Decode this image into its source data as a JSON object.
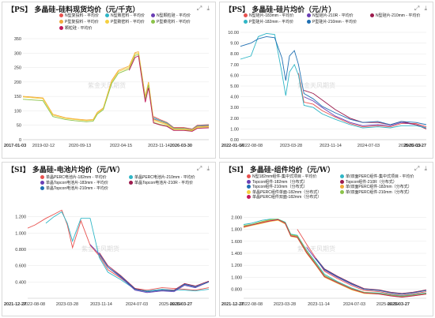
{
  "panels": [
    {
      "title": "【PS】 多晶硅-硅料现货均价（元/千克）",
      "watermark": "紫金天风期货",
      "chart_data": {
        "type": "line",
        "ylim": [
          0,
          350
        ],
        "yticks": [
          0,
          50,
          100,
          150,
          200,
          250,
          300,
          350
        ],
        "xlim": [
          "2017-01-03",
          "2026-03-30"
        ],
        "xticklabels": [
          "2017-01-03",
          "2019-02-12",
          "2020-09-13",
          "2022-04-15",
          "2023-11-14",
          "2026-03-30"
        ],
        "x": [
          "2017-01-03",
          "2018-01-01",
          "2018-07-01",
          "2019-02-12",
          "2019-08-01",
          "2020-03-01",
          "2020-07-01",
          "2020-09-13",
          "2021-01-01",
          "2021-06-01",
          "2021-10-01",
          "2022-04-15",
          "2022-08-01",
          "2022-10-01",
          "2023-02-01",
          "2023-04-01",
          "2023-07-01",
          "2023-11-14",
          "2024-03-01",
          "2024-07-01",
          "2025-01-01",
          "2025-06-01",
          "2025-09-01",
          "2026-03-30"
        ],
        "series": [
          {
            "name": "N型复投料 - 平均价",
            "color": "#e8524f",
            "values": [
              null,
              null,
              null,
              null,
              null,
              null,
              null,
              null,
              null,
              null,
              null,
              null,
              null,
              null,
              null,
              null,
              80,
              68,
              60,
              42,
              42,
              37,
              50,
              52
            ]
          },
          {
            "name": "N型致密料 - 平均价",
            "color": "#2fb6c6",
            "values": [
              null,
              null,
              null,
              null,
              null,
              null,
              null,
              null,
              null,
              null,
              null,
              null,
              null,
              null,
              null,
              null,
              76,
              65,
              58,
              40,
              40,
              35,
              48,
              50
            ]
          },
          {
            "name": "N型颗粒硅 - 平均价",
            "color": "#6a3fb5",
            "values": [
              null,
              null,
              null,
              null,
              null,
              null,
              null,
              null,
              null,
              null,
              null,
              null,
              null,
              null,
              null,
              null,
              72,
              62,
              55,
              38,
              38,
              33,
              46,
              48
            ]
          },
          {
            "name": "P型复投料 - 平均价",
            "color": "#f2a93b",
            "values": [
              150,
              145,
              88,
              76,
              72,
              68,
              70,
              95,
              110,
              205,
              240,
              255,
              302,
              305,
              150,
              200,
              70,
              62,
              55,
              38,
              38,
              34,
              45,
              47
            ]
          },
          {
            "name": "P型致密料 - 平均价",
            "color": "#f5d040",
            "values": [
              148,
              142,
              85,
              74,
              70,
              66,
              68,
              92,
              108,
              200,
              236,
              250,
              298,
              300,
              145,
              195,
              66,
              58,
              52,
              36,
              36,
              32,
              43,
              45
            ]
          },
          {
            "name": "P型菜花料 - 平均价",
            "color": "#8bc34a",
            "values": [
              140,
              135,
              80,
              70,
              66,
              62,
              64,
              88,
              104,
              195,
              230,
              245,
              292,
              295,
              140,
              190,
              60,
              52,
              48,
              33,
              33,
              30,
              40,
              42
            ]
          },
          {
            "name": "颗粒硅 - 平均价",
            "color": "#c2185b",
            "values": [
              null,
              null,
              null,
              null,
              null,
              null,
              null,
              null,
              null,
              null,
              null,
              240,
              285,
              290,
              130,
              180,
              58,
              50,
              46,
              32,
              32,
              29,
              39,
              41
            ]
          }
        ]
      }
    },
    {
      "title": "【PS】 多晶硅-硅片均价（元/片）",
      "watermark": "紫金天风期货",
      "chart_data": {
        "type": "line",
        "ylim": [
          0,
          10
        ],
        "yticks": [
          0,
          1,
          2,
          3,
          4,
          5,
          6,
          7,
          8,
          9,
          10
        ],
        "yticklabels": [
          "0.00",
          "1.00",
          "2.00",
          "3.00",
          "4.00",
          "5.00",
          "6.00",
          "7.00",
          "8.00",
          "9.00",
          "10.00"
        ],
        "xticklabels": [
          "2022-01-04",
          "2022-08-08",
          "2023-03-28",
          "2023-11-14",
          "2024-07-03",
          "2025-02-19",
          "2026-03-27"
        ],
        "x": [
          "2022-01-04",
          "2022-04-01",
          "2022-06-01",
          "2022-08-08",
          "2022-10-15",
          "2022-12-15",
          "2023-01-15",
          "2023-02-15",
          "2023-03-28",
          "2023-05-01",
          "2023-06-15",
          "2023-09-01",
          "2023-11-14",
          "2024-03-01",
          "2024-07-03",
          "2024-10-15",
          "2025-02-19",
          "2025-06-01",
          "2025-09-01",
          "2026-01-01",
          "2026-03-27"
        ],
        "series": [
          {
            "name": "N型硅片-183mm - 平均价",
            "color": "#e8524f",
            "values": [
              null,
              null,
              null,
              null,
              null,
              null,
              null,
              null,
              null,
              6.2,
              3.5,
              3.3,
              2.7,
              2.1,
              1.5,
              1.2,
              1.3,
              1.2,
              1.5,
              1.5,
              1.2
            ]
          },
          {
            "name": "N型硅片-210R - 平均价",
            "color": "#6a3fb5",
            "values": [
              null,
              null,
              null,
              null,
              null,
              null,
              null,
              null,
              null,
              null,
              4.0,
              3.6,
              3.0,
              2.2,
              1.6,
              1.3,
              1.4,
              1.3,
              1.6,
              1.4,
              1.1
            ]
          },
          {
            "name": "N型硅片-210mm - 平均价",
            "color": "#9c1b4d",
            "values": [
              null,
              null,
              null,
              null,
              null,
              null,
              null,
              null,
              null,
              null,
              4.6,
              4.3,
              3.7,
              2.8,
              2.0,
              1.6,
              1.6,
              1.4,
              1.7,
              1.4,
              1.0
            ]
          },
          {
            "name": "P型硅片-182mm - 平均价",
            "color": "#2fb6c6",
            "values": [
              7.5,
              7.8,
              9.6,
              9.9,
              9.8,
              6.2,
              4.1,
              6.3,
              7.0,
              6.0,
              3.2,
              3.0,
              2.4,
              1.9,
              1.4,
              1.1,
              1.2,
              1.1,
              1.3,
              1.3,
              1.1
            ]
          },
          {
            "name": "P型硅片-210mm - 平均价",
            "color": "#1f6fb2",
            "values": [
              8.7,
              9.0,
              9.4,
              9.6,
              9.5,
              7.6,
              5.5,
              7.8,
              8.3,
              7.0,
              4.3,
              3.8,
              3.1,
              2.5,
              1.9,
              1.6,
              1.7,
              1.4,
              1.7,
              1.6,
              1.4
            ]
          }
        ]
      }
    },
    {
      "title": "【SI】 多晶硅-电池片均价（元/W）",
      "watermark": "紫金天风期货",
      "chart_data": {
        "type": "line",
        "ylim": [
          0.2,
          1.4
        ],
        "yticks": [
          0.4,
          0.6,
          0.8,
          1.0,
          1.2
        ],
        "yticklabels": [
          "0.400",
          "0.600",
          "0.800",
          "1.000",
          "1.200"
        ],
        "xticklabels": [
          "2021-12-27",
          "2022-08-08",
          "2023-03-28",
          "2023-11-14",
          "2024-07-03",
          "2025-02-19",
          "2026-03-27"
        ],
        "x": [
          "2021-12-27",
          "2022-03-01",
          "2022-06-01",
          "2022-08-08",
          "2022-10-15",
          "2022-12-01",
          "2023-01-15",
          "2023-03-28",
          "2023-06-15",
          "2023-09-01",
          "2023-11-14",
          "2024-03-01",
          "2024-07-03",
          "2024-10-15",
          "2025-02-19",
          "2025-06-01",
          "2025-09-01",
          "2025-12-01",
          "2026-03-27"
        ],
        "series": [
          {
            "name": "单晶PERC电池片-182mm - 平均价",
            "color": "#e8524f",
            "values": [
              1.06,
              1.1,
              1.18,
              1.23,
              1.28,
              1.1,
              0.82,
              1.15,
              0.85,
              0.72,
              0.55,
              0.45,
              0.32,
              0.3,
              0.33,
              0.32,
              0.31,
              0.3,
              0.33
            ]
          },
          {
            "name": "单晶PERC电池片-210mm - 平均价",
            "color": "#2fb6c6",
            "values": [
              null,
              null,
              1.12,
              1.2,
              1.26,
              1.12,
              0.9,
              1.18,
              1.18,
              0.7,
              0.52,
              0.43,
              0.31,
              0.29,
              0.31,
              0.3,
              0.3,
              0.29,
              0.31
            ]
          },
          {
            "name": "单晶Topcon电池片-183mm - 平均价",
            "color": "#6a3fb5",
            "values": [
              null,
              null,
              null,
              null,
              null,
              null,
              null,
              null,
              0.86,
              0.74,
              0.58,
              0.46,
              0.3,
              0.27,
              0.29,
              0.28,
              0.36,
              0.33,
              0.4
            ]
          },
          {
            "name": "单晶Topcon电池片-210R - 平均价",
            "color": "#9c1b4d",
            "values": [
              null,
              null,
              null,
              null,
              null,
              null,
              null,
              null,
              null,
              0.76,
              0.6,
              0.48,
              0.32,
              0.28,
              0.3,
              0.3,
              0.38,
              0.35,
              0.41
            ]
          },
          {
            "name": "单晶Topcon电池片-210mm - 平均价",
            "color": "#1f6fb2",
            "values": [
              null,
              null,
              null,
              null,
              null,
              null,
              null,
              null,
              null,
              0.74,
              0.58,
              0.47,
              0.31,
              0.28,
              0.3,
              0.29,
              0.37,
              0.34,
              0.4
            ]
          }
        ]
      }
    },
    {
      "title": "【SI】 多晶硅-组件均价（元/W）",
      "watermark": "紫金天风期货",
      "chart_data": {
        "type": "line",
        "ylim": [
          0.65,
          2.15
        ],
        "yticks": [
          0.8,
          1.0,
          1.2,
          1.4,
          1.6,
          1.8,
          2.0
        ],
        "yticklabels": [
          "0.800",
          "1.000",
          "1.200",
          "1.400",
          "1.600",
          "1.800",
          "2.000"
        ],
        "xticklabels": [
          "2021-12-27",
          "2022-08-08",
          "2023-03-28",
          "2023-11-14",
          "2024-07-03",
          "2025-02-19",
          "2026-03-27"
        ],
        "x": [
          "2021-12-27",
          "2022-03-01",
          "2022-06-01",
          "2022-08-08",
          "2022-10-15",
          "2022-12-15",
          "2023-02-01",
          "2023-03-28",
          "2023-06-15",
          "2023-09-01",
          "2023-11-14",
          "2024-03-01",
          "2024-07-03",
          "2024-10-15",
          "2025-02-19",
          "2025-06-01",
          "2025-09-01",
          "2025-12-01",
          "2026-03-27"
        ],
        "series": [
          {
            "name": "N型182mm组件-集中式项目 - 平均价",
            "color": "#e8524f",
            "values": [
              null,
              null,
              null,
              null,
              null,
              null,
              null,
              1.8,
              1.55,
              1.32,
              1.1,
              0.98,
              0.86,
              0.78,
              0.76,
              0.72,
              0.7,
              0.72,
              0.76
            ]
          },
          {
            "name": "单/双面PERC组件-集中式项目 - 平均价",
            "color": "#2fb6c6",
            "values": [
              1.88,
              1.9,
              1.95,
              1.97,
              1.97,
              1.92,
              1.72,
              1.7,
              1.45,
              1.25,
              1.05,
              0.93,
              0.82,
              0.75,
              0.74,
              0.71,
              0.69,
              0.71,
              0.74
            ]
          },
          {
            "name": "Topcon组件-182mm（分布式）",
            "color": "#6a3fb5",
            "values": [
              null,
              null,
              null,
              null,
              null,
              null,
              null,
              null,
              1.5,
              1.3,
              1.12,
              1.0,
              0.88,
              0.8,
              0.78,
              0.74,
              0.72,
              0.74,
              0.78
            ]
          },
          {
            "name": "Topcon组件-210R（分布式）",
            "color": "#9c1b4d",
            "values": [
              null,
              null,
              null,
              null,
              null,
              null,
              null,
              null,
              null,
              1.32,
              1.14,
              1.02,
              0.9,
              0.81,
              0.79,
              0.75,
              0.73,
              0.75,
              0.79
            ]
          },
          {
            "name": "Topcon组件-210mm（分布式）",
            "color": "#1f6fb2",
            "values": [
              null,
              null,
              null,
              null,
              null,
              null,
              null,
              null,
              null,
              1.31,
              1.13,
              1.01,
              0.89,
              0.8,
              0.78,
              0.74,
              0.72,
              0.74,
              0.78
            ]
          },
          {
            "name": "单/双面PERC组件-182mm（分布式）",
            "color": "#f2a93b",
            "values": [
              1.85,
              1.87,
              1.92,
              1.95,
              1.96,
              1.9,
              1.7,
              1.68,
              1.42,
              1.22,
              1.02,
              0.92,
              0.8,
              0.74,
              0.73,
              0.7,
              0.68,
              0.7,
              0.73
            ]
          },
          {
            "name": "单晶PERC组件单面-182mm（分布式）",
            "color": "#f5d040",
            "values": [
              1.83,
              1.86,
              1.9,
              1.93,
              1.95,
              1.89,
              1.68,
              1.66,
              1.4,
              1.2,
              1.0,
              0.9,
              0.79,
              0.73,
              0.72,
              0.69,
              0.67,
              0.69,
              0.72
            ]
          },
          {
            "name": "单/双面PERC组件-210mm（分布式）",
            "color": "#8bc34a",
            "values": [
              1.86,
              1.88,
              1.93,
              1.96,
              1.97,
              1.91,
              1.71,
              1.69,
              1.44,
              1.23,
              1.03,
              0.92,
              0.81,
              0.75,
              0.73,
              0.7,
              0.68,
              0.7,
              0.73
            ]
          },
          {
            "name": "单晶PERC组件双面-182mm（分布式）",
            "color": "#c2185b",
            "values": [
              1.84,
              1.87,
              1.91,
              1.94,
              1.96,
              1.9,
              1.69,
              1.67,
              1.41,
              1.21,
              1.01,
              0.91,
              0.8,
              0.74,
              0.72,
              0.69,
              0.67,
              0.69,
              0.72
            ]
          }
        ]
      }
    }
  ]
}
